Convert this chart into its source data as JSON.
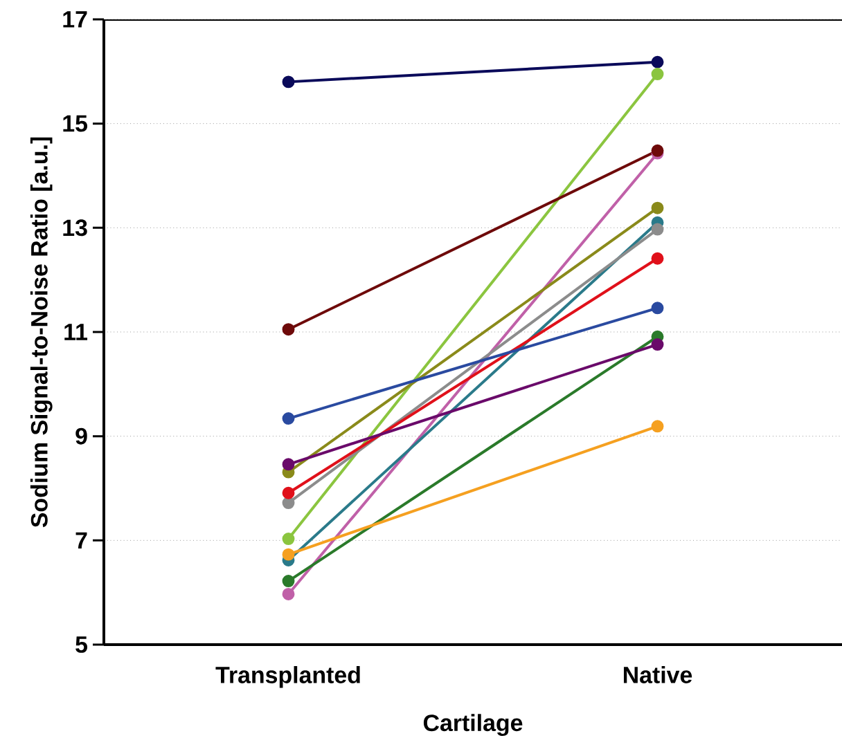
{
  "chart_data": {
    "type": "line",
    "xlabel": "Cartilage",
    "ylabel": "Sodium Signal-to-Noise Ratio [a.u.]",
    "categories": [
      "Transplanted",
      "Native"
    ],
    "series": [
      {
        "color": "#0a0a5a",
        "values": [
          15.8,
          16.18
        ]
      },
      {
        "color": "#8bc53f",
        "values": [
          7.03,
          15.95
        ]
      },
      {
        "color": "#c060a8",
        "values": [
          5.97,
          14.43
        ]
      },
      {
        "color": "#6e0a0a",
        "values": [
          11.05,
          14.48
        ]
      },
      {
        "color": "#8a8a1a",
        "values": [
          8.31,
          13.38
        ]
      },
      {
        "color": "#2a7a8a",
        "values": [
          6.62,
          13.1
        ]
      },
      {
        "color": "#8c8c8c",
        "values": [
          7.72,
          12.97
        ]
      },
      {
        "color": "#e0101a",
        "values": [
          7.91,
          12.41
        ]
      },
      {
        "color": "#2a4aa0",
        "values": [
          9.34,
          11.46
        ]
      },
      {
        "color": "#2a7a2a",
        "values": [
          6.22,
          10.91
        ]
      },
      {
        "color": "#6a0a6a",
        "values": [
          8.46,
          10.76
        ]
      },
      {
        "color": "#f5a020",
        "values": [
          6.73,
          9.19
        ]
      }
    ],
    "ylim": [
      5,
      17
    ],
    "yticks": [
      5,
      7,
      9,
      11,
      13,
      15,
      17
    ],
    "grid": "y",
    "marker": "circle",
    "line_style": "solid"
  }
}
